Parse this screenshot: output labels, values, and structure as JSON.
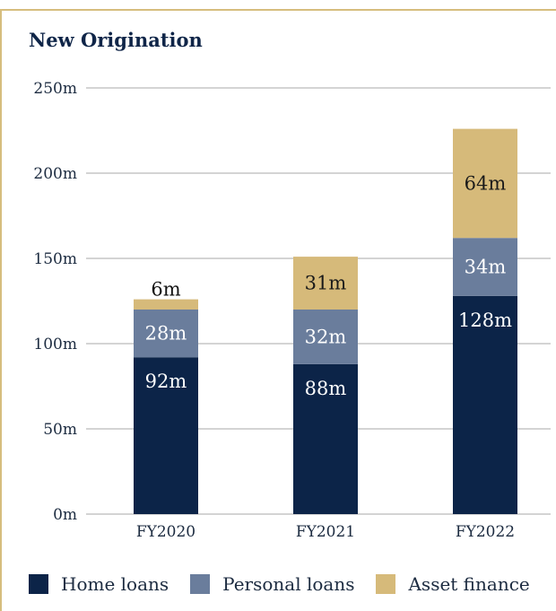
{
  "colors": {
    "frame": "#d6bd7e",
    "title": "#0f2548",
    "grid": "#a8a8a8",
    "axis_text": "#1c2b40",
    "home_loans": "#0c2448",
    "personal_loans": "#6a7d9c",
    "asset_finance": "#d6ba7a"
  },
  "chart_data": {
    "type": "bar",
    "stacked": true,
    "title": "New Origination",
    "categories": [
      "FY2020",
      "FY2021",
      "FY2022"
    ],
    "series": [
      {
        "name": "Home loans",
        "values": [
          92,
          88,
          128
        ],
        "labels": [
          "92m",
          "88m",
          "128m"
        ],
        "color": "#0c2448",
        "label_color": "#ffffff"
      },
      {
        "name": "Personal loans",
        "values": [
          28,
          32,
          34
        ],
        "labels": [
          "28m",
          "32m",
          "34m"
        ],
        "color": "#6a7d9c",
        "label_color": "#ffffff"
      },
      {
        "name": "Asset finance",
        "values": [
          6,
          31,
          64
        ],
        "labels": [
          "6m",
          "31m",
          "64m"
        ],
        "color": "#d6ba7a",
        "label_color": "#1a1a1a"
      }
    ],
    "ylim": [
      0,
      250
    ],
    "yticks": [
      0,
      50,
      100,
      150,
      200,
      250
    ],
    "ytick_labels": [
      "0m",
      "50m",
      "100m",
      "150m",
      "200m",
      "250m"
    ],
    "grid": true,
    "legend_position": "bottom"
  }
}
